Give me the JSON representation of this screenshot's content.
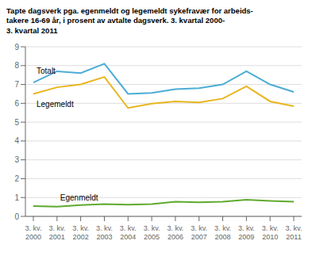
{
  "chart_data": {
    "type": "line",
    "title": "Tapte dagsverk pga. egenmeldt og legemeldt sykefravær for arbeids-\ntakere 16-69 år, i prosent av avtalte dagsverk. 3. kvartal 2000-\n3. kvartal 2011",
    "categories": [
      "3. kv.\n2000",
      "3. kv.\n2001",
      "3. kv.\n2002",
      "3. kv.\n2003",
      "3. kv.\n2004",
      "3. kv.\n2005",
      "3. kv.\n2006",
      "3. kv.\n2007",
      "3. kv.\n2008",
      "3. kv.\n2009",
      "3. kv.\n2010",
      "3. kv.\n2011"
    ],
    "series": [
      {
        "name": "Totalt",
        "color": "#4bacd6",
        "values": [
          7.1,
          7.7,
          7.6,
          8.1,
          6.5,
          6.55,
          6.75,
          6.8,
          7.0,
          7.7,
          7.0,
          6.6
        ]
      },
      {
        "name": "Legemeldt",
        "color": "#e8b520",
        "values": [
          6.5,
          6.85,
          7.0,
          7.4,
          5.75,
          5.98,
          6.1,
          6.05,
          6.25,
          6.9,
          6.1,
          5.85
        ]
      },
      {
        "name": "Egenmeldt",
        "color": "#5faa2e",
        "values": [
          0.55,
          0.52,
          0.6,
          0.65,
          0.62,
          0.65,
          0.78,
          0.75,
          0.78,
          0.88,
          0.82,
          0.78
        ]
      }
    ],
    "ylim": [
      0,
      9
    ],
    "yticks": [
      0,
      1,
      2,
      3,
      4,
      5,
      6,
      7,
      8,
      9
    ],
    "grid": true
  }
}
